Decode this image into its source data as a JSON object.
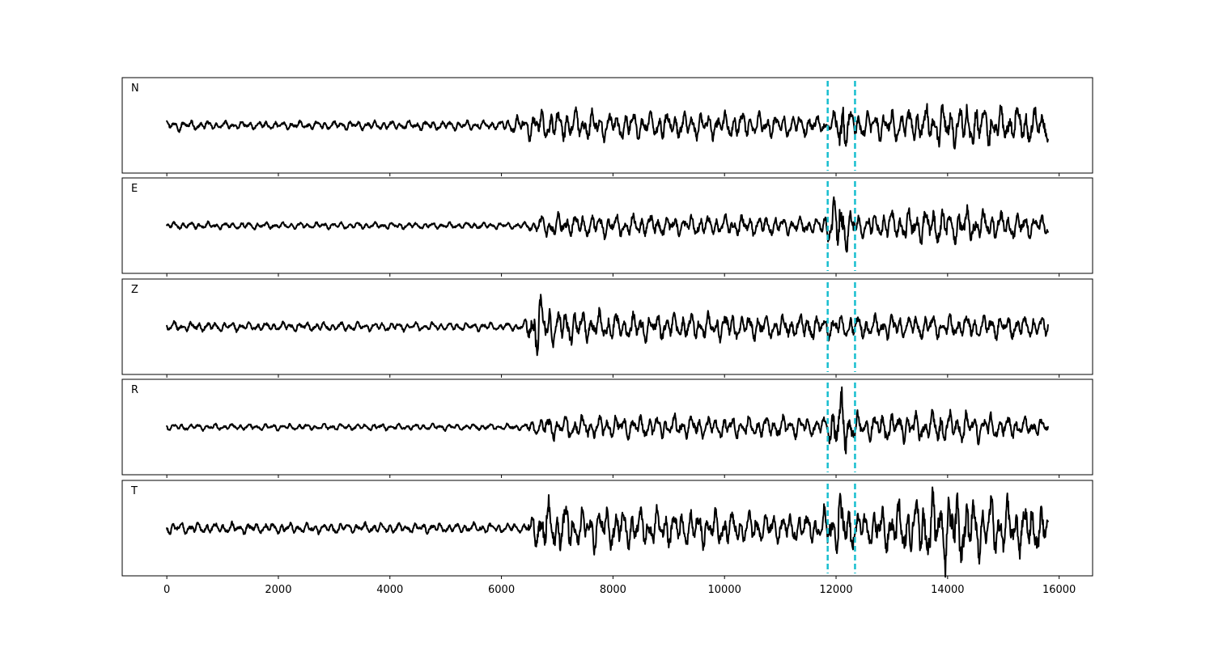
{
  "chart_data": {
    "type": "line",
    "xlim": [
      -800,
      16600
    ],
    "x_ticks": [
      0,
      2000,
      4000,
      6000,
      8000,
      10000,
      12000,
      14000,
      16000
    ],
    "x_tick_labels": [
      "0",
      "2000",
      "4000",
      "6000",
      "8000",
      "10000",
      "12000",
      "14000",
      "16000"
    ],
    "n_samples": 15800,
    "grid": false,
    "markers": {
      "style": "dashed",
      "color": "#17becf",
      "x": [
        11850,
        12340
      ]
    },
    "line_color": "#000000",
    "panels": [
      {
        "label": "N",
        "envelope": [
          {
            "x": 0,
            "amp": 0.14
          },
          {
            "x": 1000,
            "amp": 0.1
          },
          {
            "x": 6000,
            "amp": 0.12
          },
          {
            "x": 6700,
            "amp": 0.4
          },
          {
            "x": 11500,
            "amp": 0.28
          },
          {
            "x": 11900,
            "amp": 0.15
          },
          {
            "x": 12100,
            "amp": 0.85
          },
          {
            "x": 12300,
            "amp": 0.3
          },
          {
            "x": 14000,
            "amp": 0.55
          },
          {
            "x": 15800,
            "amp": 0.45
          }
        ]
      },
      {
        "label": "E",
        "envelope": [
          {
            "x": 0,
            "amp": 0.09
          },
          {
            "x": 6400,
            "amp": 0.08
          },
          {
            "x": 6800,
            "amp": 0.3
          },
          {
            "x": 11700,
            "amp": 0.22
          },
          {
            "x": 12050,
            "amp": 0.85
          },
          {
            "x": 12400,
            "amp": 0.3
          },
          {
            "x": 13950,
            "amp": 0.5
          },
          {
            "x": 15800,
            "amp": 0.25
          }
        ]
      },
      {
        "label": "Z",
        "envelope": [
          {
            "x": 0,
            "amp": 0.12
          },
          {
            "x": 6400,
            "amp": 0.1
          },
          {
            "x": 6700,
            "amp": 1.0
          },
          {
            "x": 6900,
            "amp": 0.45
          },
          {
            "x": 8000,
            "amp": 0.35
          },
          {
            "x": 12400,
            "amp": 0.3
          },
          {
            "x": 15800,
            "amp": 0.28
          }
        ]
      },
      {
        "label": "R",
        "envelope": [
          {
            "x": 0,
            "amp": 0.08
          },
          {
            "x": 6400,
            "amp": 0.08
          },
          {
            "x": 6800,
            "amp": 0.3
          },
          {
            "x": 11800,
            "amp": 0.25
          },
          {
            "x": 12100,
            "amp": 0.9
          },
          {
            "x": 12400,
            "amp": 0.3
          },
          {
            "x": 13950,
            "amp": 0.45
          },
          {
            "x": 15800,
            "amp": 0.2
          }
        ]
      },
      {
        "label": "T",
        "envelope": [
          {
            "x": 0,
            "amp": 0.14
          },
          {
            "x": 6400,
            "amp": 0.12
          },
          {
            "x": 6800,
            "amp": 0.7
          },
          {
            "x": 7300,
            "amp": 0.55
          },
          {
            "x": 11700,
            "amp": 0.35
          },
          {
            "x": 12050,
            "amp": 0.9
          },
          {
            "x": 12400,
            "amp": 0.4
          },
          {
            "x": 13950,
            "amp": 0.95
          },
          {
            "x": 15800,
            "amp": 0.55
          }
        ]
      }
    ]
  }
}
